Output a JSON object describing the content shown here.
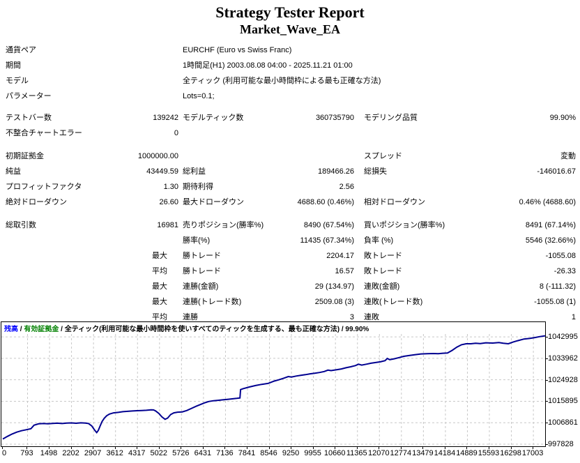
{
  "title": "Strategy Tester Report",
  "subtitle": "Market_Wave_EA",
  "sections": [
    {
      "rows": [
        {
          "wide": true,
          "cells": [
            "通貨ペア",
            "",
            "EURCHF (Euro vs Swiss Franc)",
            "",
            "",
            ""
          ]
        },
        {
          "wide": true,
          "cells": [
            "期間",
            "",
            "1時間足(H1) 2003.08.08 04:00 - 2025.11.21 01:00",
            "",
            "",
            ""
          ]
        },
        {
          "wide": true,
          "cells": [
            "モデル",
            "",
            "全ティック (利用可能な最小時間枠による最も正確な方法)",
            "",
            "",
            ""
          ]
        },
        {
          "wide": true,
          "cells": [
            "パラメーター",
            "",
            "Lots=0.1;",
            "",
            "",
            ""
          ]
        }
      ]
    },
    {
      "rows": [
        {
          "cells": [
            "テストバー数",
            "139242",
            "モデルティック数",
            "360735790",
            "モデリング品質",
            "99.90%"
          ]
        },
        {
          "cells": [
            "不整合チャートエラー",
            "0",
            "",
            "",
            "",
            ""
          ]
        }
      ]
    },
    {
      "rows": [
        {
          "cells": [
            "初期証拠金",
            "1000000.00",
            "",
            "",
            "スプレッド",
            "変動"
          ]
        },
        {
          "cells": [
            "純益",
            "43449.59",
            "総利益",
            "189466.26",
            "総損失",
            "-146016.67"
          ]
        },
        {
          "cells": [
            "プロフィットファクタ",
            "1.30",
            "期待利得",
            "2.56",
            "",
            ""
          ]
        },
        {
          "cells": [
            "絶対ドローダウン",
            "26.60",
            "最大ドローダウン",
            "4688.60 (0.46%)",
            "相対ドローダウン",
            "0.46% (4688.60)"
          ]
        }
      ]
    },
    {
      "rows": [
        {
          "cells": [
            "総取引数",
            "16981",
            "売りポジション(勝率%)",
            "8490 (67.54%)",
            "買いポジション(勝率%)",
            "8491 (67.14%)"
          ]
        },
        {
          "cells": [
            "",
            "",
            "勝率(%)",
            "11435 (67.34%)",
            "負率 (%)",
            "5546 (32.66%)"
          ]
        },
        {
          "prefix": true,
          "cells": [
            "",
            "最大",
            "勝トレード",
            "2204.17",
            "敗トレード",
            "-1055.08"
          ]
        },
        {
          "prefix": true,
          "cells": [
            "",
            "平均",
            "勝トレード",
            "16.57",
            "敗トレード",
            "-26.33"
          ]
        },
        {
          "prefix": true,
          "cells": [
            "",
            "最大",
            "連勝(金額)",
            "29 (134.97)",
            "連敗(金額)",
            "8 (-111.32)"
          ]
        },
        {
          "prefix": true,
          "cells": [
            "",
            "最大",
            "連勝(トレード数)",
            "2509.08 (3)",
            "連敗(トレード数)",
            "-1055.08 (1)"
          ]
        },
        {
          "prefix": true,
          "cells": [
            "",
            "平均",
            "連勝",
            "3",
            "連敗",
            "1"
          ]
        }
      ]
    }
  ],
  "chart_data": {
    "type": "line",
    "title": "",
    "xlabel": "",
    "ylabel": "",
    "legend_position": "top-left",
    "grid": true,
    "separator": " / ",
    "legend": [
      {
        "name": "legend-balance",
        "text": "残高",
        "color": "#0000FF"
      },
      {
        "name": "legend-equity",
        "text": "有効証拠金",
        "color": "#008000"
      },
      {
        "name": "legend-model",
        "text": "全ティック(利用可能な最小時間枠を使いすべてのティックを生成する、最も正確な方法)",
        "color": "#000000"
      },
      {
        "name": "legend-quality",
        "text": "99.90%",
        "color": "#000000"
      }
    ],
    "y_ticks": [
      1042995,
      1033962,
      1024928,
      1015895,
      1006861,
      997828
    ],
    "x_ticks": [
      0,
      793,
      1498,
      2202,
      2907,
      3612,
      4317,
      5022,
      5726,
      6431,
      7136,
      7841,
      8546,
      9250,
      9955,
      10660,
      11365,
      12070,
      12774,
      13479,
      14184,
      14889,
      15593,
      16298,
      17003
    ],
    "x_range": [
      0,
      17380
    ],
    "y_range": [
      996940,
      1049200
    ],
    "line_color": "#000090",
    "grid_color": "#C8C8C8",
    "series": [
      {
        "name": "残高",
        "points": [
          [
            0,
            1000000
          ],
          [
            150,
            1001100
          ],
          [
            300,
            1002100
          ],
          [
            450,
            1002900
          ],
          [
            600,
            1003500
          ],
          [
            750,
            1003900
          ],
          [
            900,
            1004300
          ],
          [
            1000,
            1005800
          ],
          [
            1150,
            1006400
          ],
          [
            1300,
            1006500
          ],
          [
            1450,
            1006400
          ],
          [
            1600,
            1006550
          ],
          [
            1750,
            1006650
          ],
          [
            1900,
            1006500
          ],
          [
            2050,
            1006700
          ],
          [
            2200,
            1006780
          ],
          [
            2350,
            1006620
          ],
          [
            2500,
            1006800
          ],
          [
            2650,
            1006700
          ],
          [
            2750,
            1006500
          ],
          [
            2850,
            1005500
          ],
          [
            2950,
            1003600
          ],
          [
            3010,
            1002700
          ],
          [
            3060,
            1003600
          ],
          [
            3120,
            1005500
          ],
          [
            3180,
            1007300
          ],
          [
            3250,
            1008700
          ],
          [
            3330,
            1009800
          ],
          [
            3420,
            1010500
          ],
          [
            3550,
            1011000
          ],
          [
            3700,
            1011200
          ],
          [
            3850,
            1011500
          ],
          [
            4000,
            1011650
          ],
          [
            4150,
            1011800
          ],
          [
            4300,
            1011900
          ],
          [
            4450,
            1012000
          ],
          [
            4600,
            1012100
          ],
          [
            4750,
            1012300
          ],
          [
            4830,
            1012250
          ],
          [
            4900,
            1011800
          ],
          [
            5000,
            1010800
          ],
          [
            5100,
            1009300
          ],
          [
            5200,
            1008300
          ],
          [
            5280,
            1008800
          ],
          [
            5380,
            1010300
          ],
          [
            5480,
            1011000
          ],
          [
            5600,
            1011300
          ],
          [
            5750,
            1011400
          ],
          [
            5900,
            1012000
          ],
          [
            6050,
            1012900
          ],
          [
            6200,
            1013800
          ],
          [
            6350,
            1014600
          ],
          [
            6480,
            1015300
          ],
          [
            6600,
            1015800
          ],
          [
            6750,
            1016100
          ],
          [
            6900,
            1016300
          ],
          [
            7050,
            1016500
          ],
          [
            7200,
            1016700
          ],
          [
            7350,
            1016900
          ],
          [
            7500,
            1017100
          ],
          [
            7600,
            1017300
          ],
          [
            7620,
            1020800
          ],
          [
            7700,
            1021200
          ],
          [
            7900,
            1021900
          ],
          [
            8100,
            1022500
          ],
          [
            8300,
            1023000
          ],
          [
            8500,
            1023400
          ],
          [
            8700,
            1024400
          ],
          [
            8845,
            1024928
          ],
          [
            9000,
            1025600
          ],
          [
            9150,
            1026300
          ],
          [
            9250,
            1026100
          ],
          [
            9400,
            1026500
          ],
          [
            9550,
            1026800
          ],
          [
            9700,
            1027100
          ],
          [
            9850,
            1027450
          ],
          [
            10000,
            1027700
          ],
          [
            10150,
            1028000
          ],
          [
            10300,
            1028400
          ],
          [
            10420,
            1029000
          ],
          [
            10520,
            1028800
          ],
          [
            10680,
            1029130
          ],
          [
            10850,
            1029500
          ],
          [
            11000,
            1030000
          ],
          [
            11150,
            1030400
          ],
          [
            11300,
            1030900
          ],
          [
            11400,
            1031500
          ],
          [
            11500,
            1031100
          ],
          [
            11650,
            1031500
          ],
          [
            11800,
            1031900
          ],
          [
            11950,
            1032200
          ],
          [
            12100,
            1032500
          ],
          [
            12250,
            1033000
          ],
          [
            12320,
            1033900
          ],
          [
            12400,
            1033400
          ],
          [
            12550,
            1033800
          ],
          [
            12700,
            1034300
          ],
          [
            12850,
            1034800
          ],
          [
            13000,
            1035100
          ],
          [
            13200,
            1035500
          ],
          [
            13400,
            1035800
          ],
          [
            13600,
            1035900
          ],
          [
            13800,
            1036000
          ],
          [
            13950,
            1035900
          ],
          [
            14100,
            1036100
          ],
          [
            14250,
            1036200
          ],
          [
            14400,
            1037300
          ],
          [
            14550,
            1038700
          ],
          [
            14700,
            1039700
          ],
          [
            14850,
            1040100
          ],
          [
            15000,
            1040100
          ],
          [
            15150,
            1040300
          ],
          [
            15300,
            1040200
          ],
          [
            15480,
            1040500
          ],
          [
            15700,
            1040400
          ],
          [
            15900,
            1040600
          ],
          [
            16040,
            1040300
          ],
          [
            16200,
            1040100
          ],
          [
            16350,
            1040800
          ],
          [
            16500,
            1041400
          ],
          [
            16700,
            1042100
          ],
          [
            16900,
            1042400
          ],
          [
            17050,
            1042700
          ],
          [
            17200,
            1043100
          ],
          [
            17380,
            1043450
          ]
        ]
      }
    ]
  }
}
